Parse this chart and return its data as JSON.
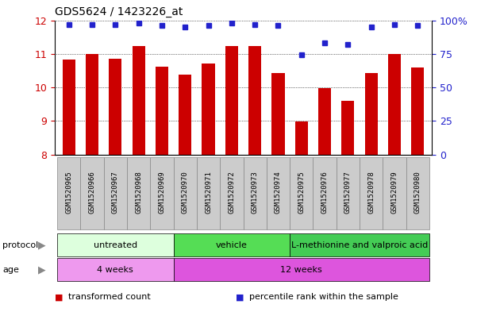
{
  "title": "GDS5624 / 1423226_at",
  "samples": [
    "GSM1520965",
    "GSM1520966",
    "GSM1520967",
    "GSM1520968",
    "GSM1520969",
    "GSM1520970",
    "GSM1520971",
    "GSM1520972",
    "GSM1520973",
    "GSM1520974",
    "GSM1520975",
    "GSM1520976",
    "GSM1520977",
    "GSM1520978",
    "GSM1520979",
    "GSM1520980"
  ],
  "transformed_count": [
    10.82,
    11.0,
    10.85,
    11.22,
    10.62,
    10.38,
    10.72,
    11.22,
    11.22,
    10.42,
    8.98,
    9.97,
    9.6,
    10.42,
    11.0,
    10.6
  ],
  "percentile_rank": [
    97,
    97,
    97,
    98,
    96,
    95,
    96,
    98,
    97,
    96,
    74,
    83,
    82,
    95,
    97,
    96
  ],
  "ymin": 8,
  "ymax": 12,
  "bar_color": "#cc0000",
  "dot_color": "#2222cc",
  "protocol_groups": [
    {
      "label": "untreated",
      "start": 0,
      "end": 5,
      "color": "#ddffdd"
    },
    {
      "label": "vehicle",
      "start": 5,
      "end": 10,
      "color": "#55dd55"
    },
    {
      "label": "L-methionine and valproic acid",
      "start": 10,
      "end": 16,
      "color": "#44cc55"
    }
  ],
  "age_groups": [
    {
      "label": "4 weeks",
      "start": 0,
      "end": 5,
      "color": "#ee99ee"
    },
    {
      "label": "12 weeks",
      "start": 5,
      "end": 16,
      "color": "#dd55dd"
    }
  ],
  "legend_items": [
    {
      "label": "transformed count",
      "color": "#cc0000"
    },
    {
      "label": "percentile rank within the sample",
      "color": "#2222cc"
    }
  ],
  "left_yticks": [
    8,
    9,
    10,
    11,
    12
  ],
  "right_yticks": [
    0,
    25,
    50,
    75,
    100
  ],
  "right_yticklabels": [
    "0",
    "25",
    "50",
    "75",
    "100%"
  ],
  "tick_color_left": "#cc0000",
  "tick_color_right": "#2222cc",
  "sample_box_color": "#cccccc",
  "sample_box_edge": "#888888"
}
